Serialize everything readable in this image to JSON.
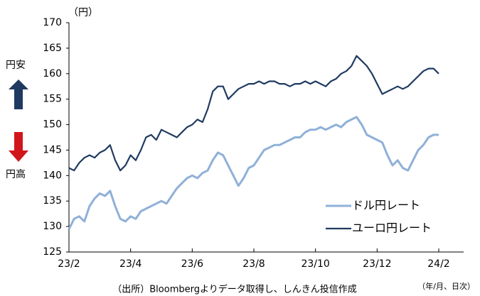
{
  "chart_data": {
    "type": "line",
    "y_unit_label": "（円）",
    "side_labels": {
      "top": "円安",
      "bottom": "円高"
    },
    "x_note": "（年/月、日次）",
    "source": "（出所）Bloombergよりデータ取得し、しんきん投信作成",
    "categories": [
      "23/2",
      null,
      null,
      null,
      null,
      null,
      null,
      null,
      null,
      null,
      null,
      null,
      "23/4",
      null,
      null,
      null,
      null,
      null,
      null,
      null,
      null,
      null,
      null,
      null,
      "23/6",
      null,
      null,
      null,
      null,
      null,
      null,
      null,
      null,
      null,
      null,
      null,
      "23/8",
      null,
      null,
      null,
      null,
      null,
      null,
      null,
      null,
      null,
      null,
      null,
      "23/10",
      null,
      null,
      null,
      null,
      null,
      null,
      null,
      null,
      null,
      null,
      null,
      "23/12",
      null,
      null,
      null,
      null,
      null,
      null,
      null,
      null,
      null,
      null,
      null,
      "24/2"
    ],
    "series": [
      {
        "name": "ドル円レート",
        "color": "#8fb0d8",
        "values": [
          129.5,
          131.5,
          132,
          131,
          134,
          135.5,
          136.5,
          136,
          137,
          134,
          131.5,
          131,
          132,
          131.5,
          133,
          133.5,
          134,
          134.5,
          135,
          134.5,
          136,
          137.5,
          138.5,
          139.5,
          140,
          139.5,
          140.5,
          141,
          143,
          144.5,
          144,
          142,
          140,
          138,
          139.5,
          141.5,
          142,
          143.5,
          145,
          145.5,
          146,
          146,
          146.5,
          147,
          147.5,
          147.5,
          148.5,
          149,
          149,
          149.5,
          149,
          149.5,
          150,
          149.5,
          150.5,
          151,
          151.5,
          150,
          148,
          147.5,
          147,
          146.5,
          144,
          142,
          143,
          141.5,
          141,
          143,
          145,
          146,
          147.5,
          148,
          148
        ]
      },
      {
        "name": "ユーロ円レート",
        "color": "#1f3a60",
        "values": [
          141.5,
          141,
          142.5,
          143.5,
          144,
          143.5,
          144.5,
          145,
          146,
          143,
          141,
          142,
          144,
          143,
          145,
          147.5,
          148,
          147,
          149,
          148.5,
          148,
          147.5,
          148.5,
          149.5,
          150,
          151,
          150.5,
          153,
          156.5,
          157.5,
          157.5,
          155,
          156,
          157,
          157.5,
          158,
          158,
          158.5,
          158,
          158.5,
          158.5,
          158,
          158,
          157.5,
          158,
          158,
          158.5,
          158,
          158.5,
          158,
          157.5,
          158.5,
          159,
          160,
          160.5,
          161.5,
          163.5,
          162.5,
          161.5,
          160,
          158,
          156,
          156.5,
          157,
          157.5,
          157,
          157.5,
          158.5,
          159.5,
          160.5,
          161,
          161,
          160
        ]
      }
    ],
    "ylim": [
      125,
      170
    ],
    "yticks": [
      125,
      130,
      135,
      140,
      145,
      150,
      155,
      160,
      165,
      170
    ],
    "grid": false
  }
}
